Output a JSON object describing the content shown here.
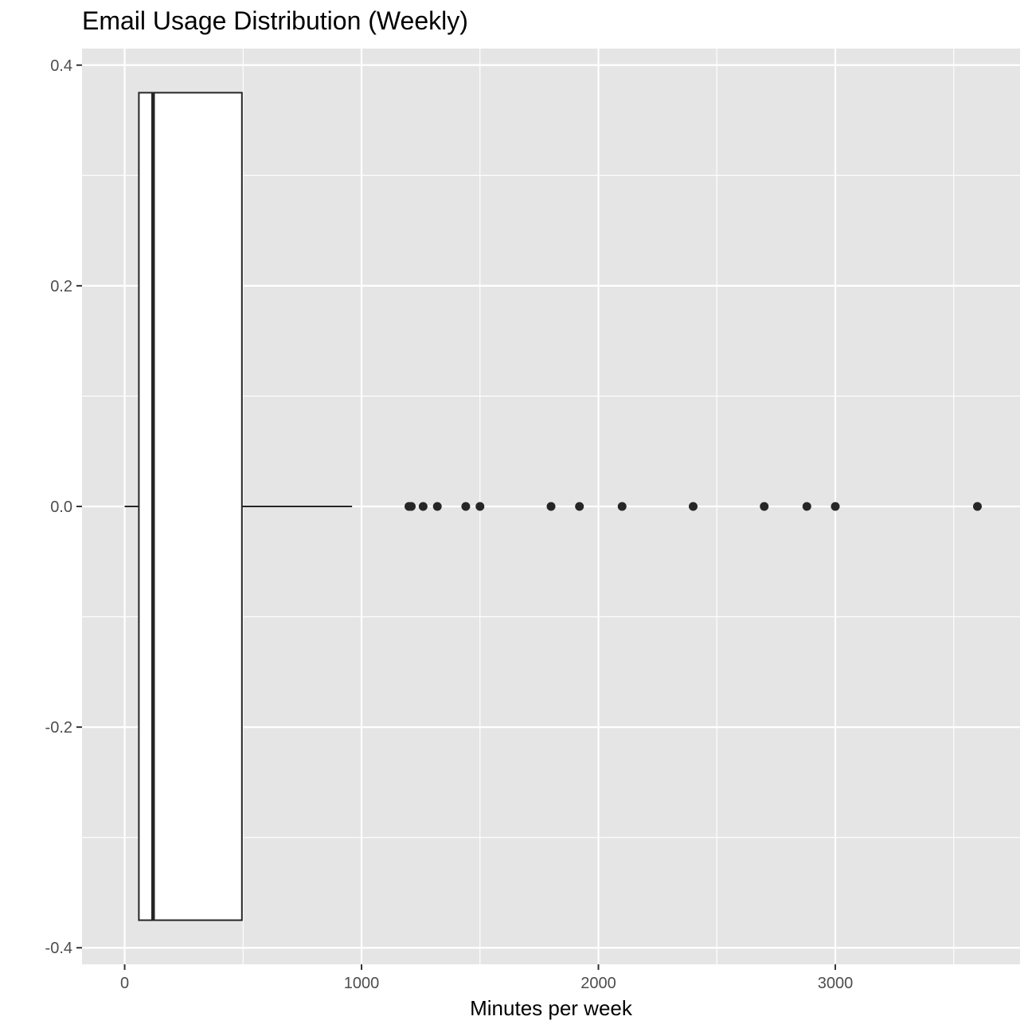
{
  "chart_data": {
    "type": "boxplot",
    "title": "Email Usage Distribution (Weekly)",
    "xlabel": "Minutes per week",
    "ylabel": "",
    "xlim": [
      -180,
      3780
    ],
    "ylim": [
      -0.415,
      0.415
    ],
    "x_ticks": [
      0,
      1000,
      2000,
      3000
    ],
    "x_tick_labels": [
      "0",
      "1000",
      "2000",
      "3000"
    ],
    "y_ticks": [
      -0.4,
      -0.2,
      0.0,
      0.2,
      0.4
    ],
    "y_tick_labels": [
      "-0.4",
      "-0.2",
      "0.0",
      "0.2",
      "0.4"
    ],
    "grid": true,
    "background_color": "#e5e5e5",
    "grid_color": "#ffffff",
    "box_fill": "#ffffff",
    "line_color": "#262626",
    "box": {
      "whisker_low": 0,
      "q1": 60,
      "median": 120,
      "q3": 495,
      "whisker_high": 960,
      "y_center": 0.0,
      "half_width": 0.375
    },
    "outliers": [
      1200,
      1210,
      1260,
      1320,
      1440,
      1500,
      1800,
      1920,
      2100,
      2400,
      2700,
      2880,
      3000,
      3600
    ]
  }
}
